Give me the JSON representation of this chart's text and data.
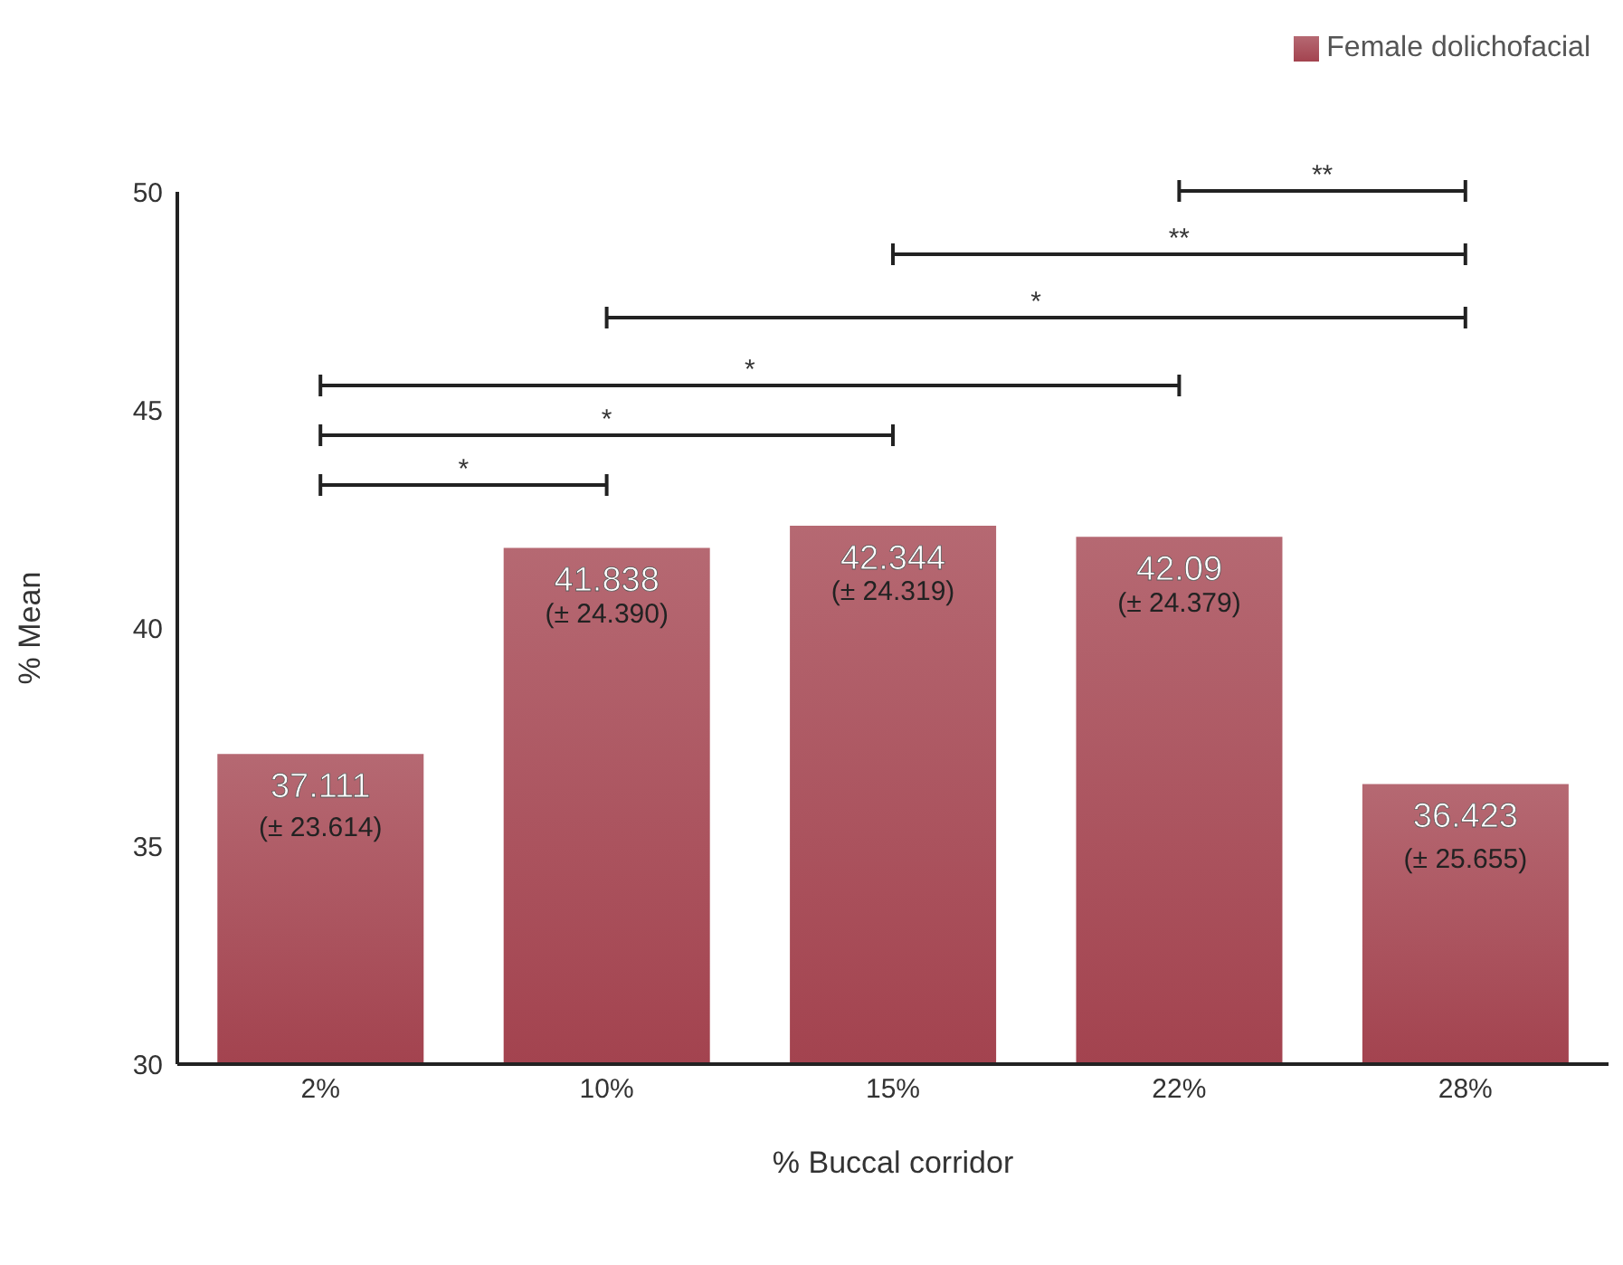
{
  "chart_data": {
    "type": "bar",
    "xlabel": "% Buccal corridor",
    "ylabel": "% Mean",
    "categories": [
      "2%",
      "10%",
      "15%",
      "22%",
      "28%"
    ],
    "series": [
      {
        "name": "Female dolichofacial",
        "color": "#a3434f",
        "values": [
          37.111,
          41.838,
          42.344,
          42.09,
          36.423
        ]
      }
    ],
    "ylim": [
      30,
      50
    ],
    "yticks": [
      30,
      35,
      40,
      45,
      50
    ],
    "legend": "top right",
    "data_labels": true,
    "annotations": [
      {
        "text": "(± 23.614)",
        "x": "2%",
        "y": 37.111
      },
      {
        "text": "(± 24.390)",
        "x": "10%",
        "y": 41.838
      },
      {
        "text": "(± 24.319)",
        "x": "15%",
        "y": 42.344
      },
      {
        "text": "(± 24.379)",
        "x": "22%",
        "y": 42.09
      },
      {
        "text": "(± 25.655)",
        "x": "28%",
        "y": 36.423
      },
      "**",
      "**",
      "*",
      "*",
      "*",
      "*"
    ]
  }
}
